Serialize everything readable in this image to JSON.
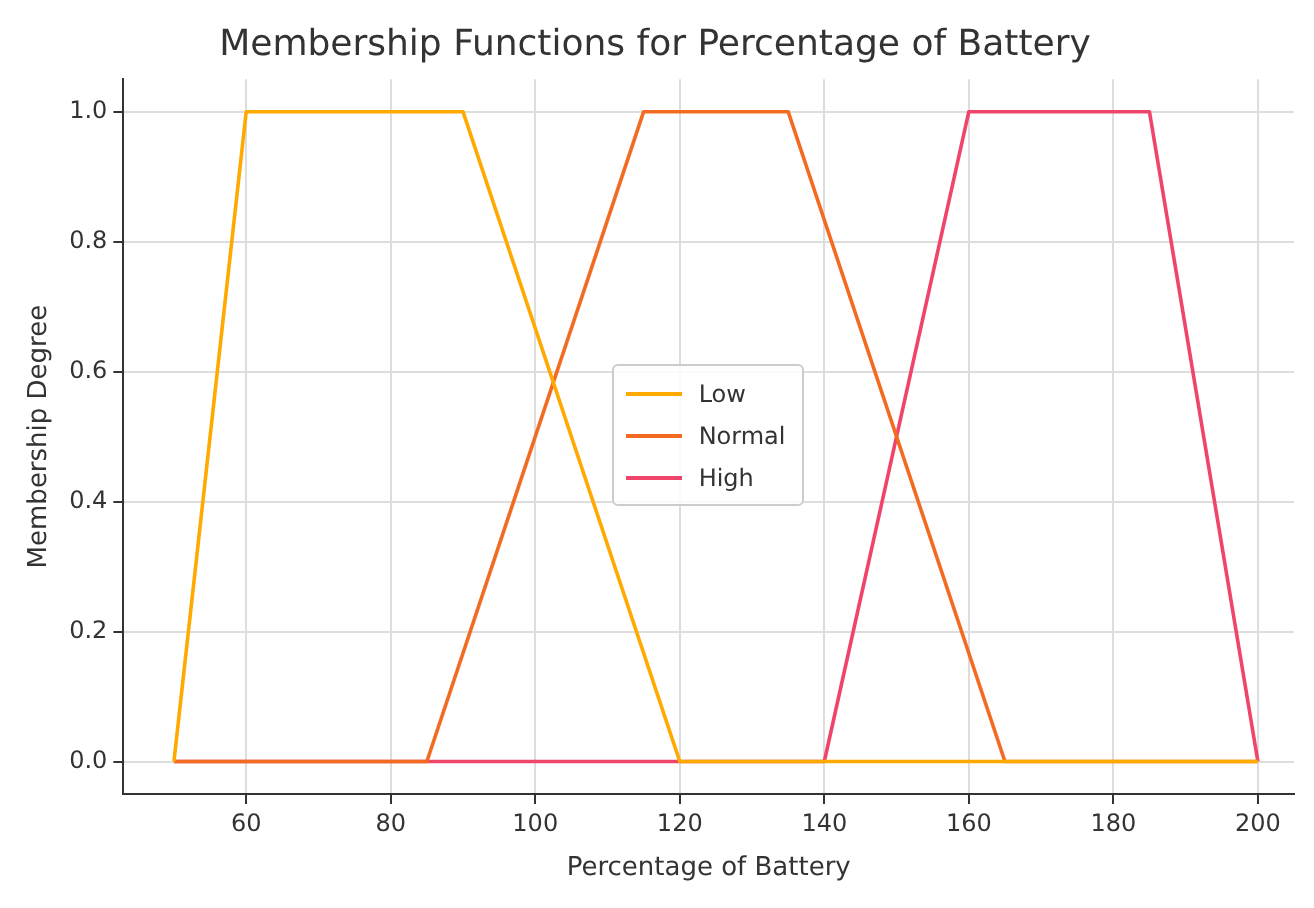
{
  "chart_data": {
    "type": "line",
    "title": "Membership Functions for Percentage of Battery",
    "xlabel": "Percentage of Battery",
    "ylabel": "Membership Degree",
    "xlim": [
      43,
      205
    ],
    "xticks": [
      60,
      80,
      100,
      120,
      140,
      160,
      180,
      200
    ],
    "ylim": [
      -0.05,
      1.05
    ],
    "yticks": [
      {
        "value": 0,
        "label": "0.0"
      },
      {
        "value": 0.2,
        "label": "0.2"
      },
      {
        "value": 0.4,
        "label": "0.4"
      },
      {
        "value": 0.6,
        "label": "0.6"
      },
      {
        "value": 0.8,
        "label": "0.8"
      },
      {
        "value": 1,
        "label": "1.0"
      }
    ],
    "grid": true,
    "legend": "center",
    "marker": "none",
    "line_style": "solid",
    "series": [
      {
        "name": "Low",
        "color": "#ffaa00",
        "x": [
          50,
          60,
          90,
          120,
          200
        ],
        "values": [
          0,
          1,
          1,
          0,
          0
        ]
      },
      {
        "name": "Normal",
        "color": "#f26b21",
        "x": [
          50,
          85,
          115,
          135,
          165,
          200
        ],
        "values": [
          0,
          0,
          1,
          1,
          0,
          0
        ]
      },
      {
        "name": "High",
        "color": "#f0456a",
        "x": [
          50,
          140,
          160,
          185,
          200
        ],
        "values": [
          0,
          0,
          1,
          1,
          0
        ]
      }
    ]
  }
}
